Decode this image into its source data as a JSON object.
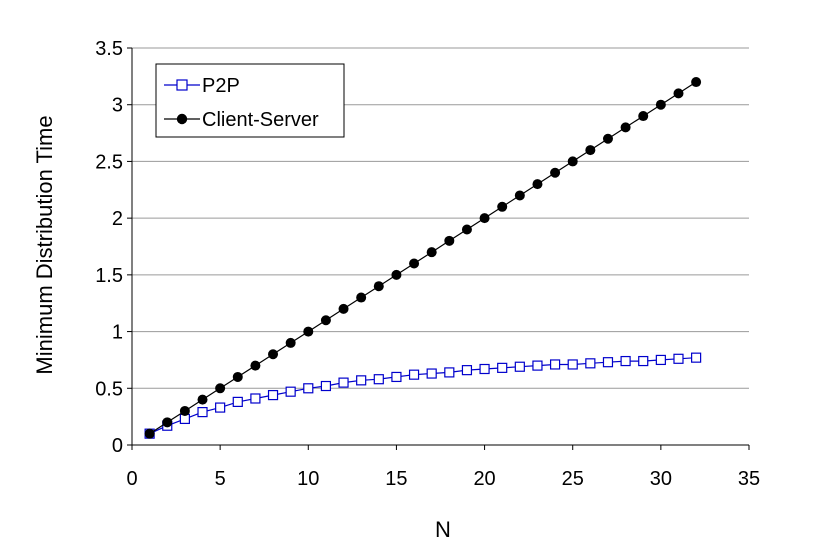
{
  "chart_data": {
    "type": "line",
    "title": "",
    "xlabel": "N",
    "ylabel": "Minimum Distribution Time",
    "xlim": [
      0,
      35
    ],
    "ylim": [
      0,
      3.5
    ],
    "xticks": [
      "0",
      "5",
      "10",
      "15",
      "20",
      "25",
      "30",
      "35"
    ],
    "yticks": [
      "0",
      "0.5",
      "1",
      "1.5",
      "2",
      "2.5",
      "3",
      "3.5"
    ],
    "grid": "horizontal",
    "legend_position": "top-left",
    "series": [
      {
        "name": "P2P",
        "color": "#0000CC",
        "marker": "open-square",
        "x": [
          1,
          2,
          3,
          4,
          5,
          6,
          7,
          8,
          9,
          10,
          11,
          12,
          13,
          14,
          15,
          16,
          17,
          18,
          19,
          20,
          21,
          22,
          23,
          24,
          25,
          26,
          27,
          28,
          29,
          30,
          31,
          32
        ],
        "y": [
          0.1,
          0.17,
          0.23,
          0.29,
          0.33,
          0.38,
          0.41,
          0.44,
          0.47,
          0.5,
          0.52,
          0.55,
          0.57,
          0.58,
          0.6,
          0.62,
          0.63,
          0.64,
          0.66,
          0.67,
          0.68,
          0.69,
          0.7,
          0.71,
          0.71,
          0.72,
          0.73,
          0.74,
          0.74,
          0.75,
          0.76,
          0.77
        ]
      },
      {
        "name": "Client-Server",
        "color": "#000000",
        "marker": "filled-circle",
        "x": [
          1,
          2,
          3,
          4,
          5,
          6,
          7,
          8,
          9,
          10,
          11,
          12,
          13,
          14,
          15,
          16,
          17,
          18,
          19,
          20,
          21,
          22,
          23,
          24,
          25,
          26,
          27,
          28,
          29,
          30,
          31,
          32
        ],
        "y": [
          0.1,
          0.2,
          0.3,
          0.4,
          0.5,
          0.6,
          0.7,
          0.8,
          0.9,
          1.0,
          1.1,
          1.2,
          1.3,
          1.4,
          1.5,
          1.6,
          1.7,
          1.8,
          1.9,
          2.0,
          2.1,
          2.2,
          2.3,
          2.4,
          2.5,
          2.6,
          2.7,
          2.8,
          2.9,
          3.0,
          3.1,
          3.2
        ]
      }
    ]
  }
}
